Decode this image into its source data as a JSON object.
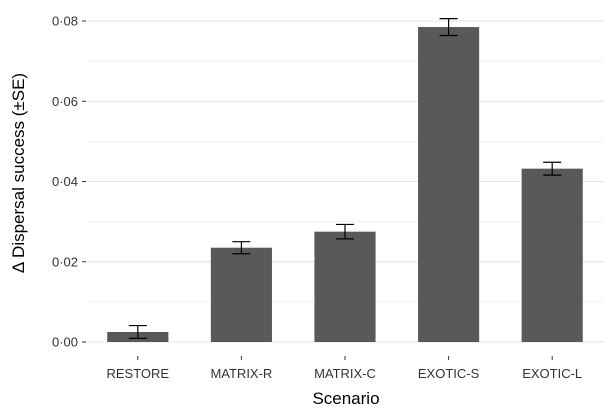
{
  "chart_data": {
    "type": "bar",
    "title": "",
    "xlabel": "Scenario",
    "ylabel": "Δ Dispersal success (±SE)",
    "categories": [
      "RESTORE",
      "MATRIX-R",
      "MATRIX-C",
      "EXOTIC-S",
      "EXOTIC-L"
    ],
    "values": [
      0.0025,
      0.0235,
      0.0275,
      0.0785,
      0.0432
    ],
    "errors": [
      0.0016,
      0.0015,
      0.0018,
      0.0021,
      0.0016
    ],
    "ylim": [
      0,
      0.082
    ],
    "yticks": [
      0.0,
      0.02,
      0.04,
      0.06,
      0.08
    ],
    "ytick_labels": [
      "0·00",
      "0·02",
      "0·04",
      "0·06",
      "0·08"
    ],
    "grid": true,
    "bar_color": "#595959",
    "background": "#ffffff"
  }
}
